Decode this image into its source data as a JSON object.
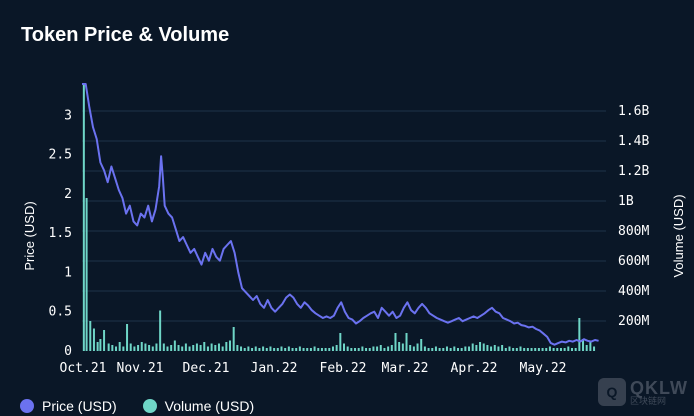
{
  "title": "Token Price & Volume",
  "legend": [
    {
      "label": "Price (USD)",
      "color": "#6b72f0"
    },
    {
      "label": "Volume (USD)",
      "color": "#6fd6c7"
    }
  ],
  "watermark": {
    "main": "QKLW",
    "sub": "区块链网"
  },
  "chart_data": {
    "type": "line",
    "title": "Token Price & Volume",
    "x_tick_labels": [
      "Oct.21",
      "Nov.21",
      "Dec.21",
      "Jan.22",
      "Feb.22",
      "Mar.22",
      "Apr.22",
      "May.22"
    ],
    "y_left": {
      "label": "Price (USD)",
      "range": [
        0,
        3.4
      ],
      "ticks": [
        0,
        0.5,
        1,
        1.5,
        2,
        2.5,
        3
      ],
      "tick_labels": [
        "0",
        "0.5",
        "1",
        "1.5",
        "2",
        "2.5",
        "3"
      ]
    },
    "y_right": {
      "label": "Volume (USD)",
      "range": [
        0,
        1.78
      ],
      "ticks": [
        0.2,
        0.4,
        0.6,
        0.8,
        1.0,
        1.2,
        1.4,
        1.6
      ],
      "tick_labels": [
        "200M",
        "400M",
        "600M",
        "800M",
        "1B",
        "1.2B",
        "1.4B",
        "1.6B"
      ]
    },
    "grid": true,
    "series": [
      {
        "name": "Price (USD)",
        "axis": "left",
        "color": "#6b72f0",
        "points": [
          [
            0.0,
            3.4
          ],
          [
            0.4,
            3.4
          ],
          [
            0.8,
            3.1
          ],
          [
            1.2,
            2.85
          ],
          [
            1.6,
            2.7
          ],
          [
            2.0,
            2.4
          ],
          [
            2.4,
            2.3
          ],
          [
            2.8,
            2.15
          ],
          [
            3.2,
            2.35
          ],
          [
            3.6,
            2.2
          ],
          [
            4.0,
            2.05
          ],
          [
            4.4,
            1.95
          ],
          [
            4.8,
            1.75
          ],
          [
            5.2,
            1.85
          ],
          [
            5.6,
            1.65
          ],
          [
            6.0,
            1.6
          ],
          [
            6.4,
            1.75
          ],
          [
            6.8,
            1.7
          ],
          [
            7.2,
            1.85
          ],
          [
            7.6,
            1.65
          ],
          [
            8.0,
            1.8
          ],
          [
            8.4,
            2.1
          ],
          [
            8.6,
            2.48
          ],
          [
            8.8,
            2.2
          ],
          [
            9.0,
            1.85
          ],
          [
            9.4,
            1.75
          ],
          [
            9.8,
            1.7
          ],
          [
            10.2,
            1.55
          ],
          [
            10.6,
            1.4
          ],
          [
            11.0,
            1.45
          ],
          [
            11.4,
            1.35
          ],
          [
            11.8,
            1.25
          ],
          [
            12.2,
            1.3
          ],
          [
            12.6,
            1.2
          ],
          [
            13.0,
            1.1
          ],
          [
            13.4,
            1.25
          ],
          [
            13.8,
            1.15
          ],
          [
            14.2,
            1.3
          ],
          [
            14.6,
            1.2
          ],
          [
            15.0,
            1.15
          ],
          [
            15.4,
            1.3
          ],
          [
            15.8,
            1.35
          ],
          [
            16.2,
            1.4
          ],
          [
            16.6,
            1.25
          ],
          [
            17.0,
            1.0
          ],
          [
            17.4,
            0.8
          ],
          [
            17.8,
            0.75
          ],
          [
            18.2,
            0.7
          ],
          [
            18.6,
            0.65
          ],
          [
            19.0,
            0.7
          ],
          [
            19.4,
            0.6
          ],
          [
            19.8,
            0.55
          ],
          [
            20.2,
            0.65
          ],
          [
            20.6,
            0.55
          ],
          [
            21.0,
            0.5
          ],
          [
            21.4,
            0.55
          ],
          [
            21.8,
            0.6
          ],
          [
            22.2,
            0.68
          ],
          [
            22.6,
            0.72
          ],
          [
            23.0,
            0.68
          ],
          [
            23.4,
            0.6
          ],
          [
            23.8,
            0.55
          ],
          [
            24.2,
            0.62
          ],
          [
            24.6,
            0.58
          ],
          [
            25.0,
            0.52
          ],
          [
            25.4,
            0.48
          ],
          [
            25.8,
            0.45
          ],
          [
            26.2,
            0.42
          ],
          [
            26.6,
            0.44
          ],
          [
            27.0,
            0.42
          ],
          [
            27.4,
            0.45
          ],
          [
            27.8,
            0.55
          ],
          [
            28.2,
            0.62
          ],
          [
            28.6,
            0.5
          ],
          [
            29.0,
            0.42
          ],
          [
            29.4,
            0.4
          ],
          [
            29.8,
            0.35
          ],
          [
            30.2,
            0.38
          ],
          [
            30.6,
            0.42
          ],
          [
            31.0,
            0.45
          ],
          [
            31.4,
            0.48
          ],
          [
            31.8,
            0.5
          ],
          [
            32.2,
            0.42
          ],
          [
            32.6,
            0.55
          ],
          [
            33.0,
            0.5
          ],
          [
            33.4,
            0.45
          ],
          [
            33.8,
            0.5
          ],
          [
            34.2,
            0.42
          ],
          [
            34.6,
            0.45
          ],
          [
            35.0,
            0.55
          ],
          [
            35.4,
            0.62
          ],
          [
            35.8,
            0.52
          ],
          [
            36.2,
            0.48
          ],
          [
            36.6,
            0.55
          ],
          [
            37.0,
            0.6
          ],
          [
            37.4,
            0.55
          ],
          [
            37.8,
            0.48
          ],
          [
            38.2,
            0.45
          ],
          [
            38.6,
            0.42
          ],
          [
            39.0,
            0.4
          ],
          [
            39.4,
            0.38
          ],
          [
            39.8,
            0.36
          ],
          [
            40.2,
            0.38
          ],
          [
            40.6,
            0.4
          ],
          [
            41.0,
            0.42
          ],
          [
            41.4,
            0.38
          ],
          [
            41.8,
            0.4
          ],
          [
            42.2,
            0.42
          ],
          [
            42.6,
            0.44
          ],
          [
            43.0,
            0.42
          ],
          [
            43.4,
            0.45
          ],
          [
            43.8,
            0.48
          ],
          [
            44.2,
            0.52
          ],
          [
            44.6,
            0.55
          ],
          [
            45.0,
            0.5
          ],
          [
            45.4,
            0.48
          ],
          [
            45.8,
            0.42
          ],
          [
            46.2,
            0.4
          ],
          [
            46.6,
            0.38
          ],
          [
            47.0,
            0.35
          ],
          [
            47.4,
            0.36
          ],
          [
            47.8,
            0.33
          ],
          [
            48.2,
            0.32
          ],
          [
            48.6,
            0.3
          ],
          [
            49.0,
            0.31
          ],
          [
            49.4,
            0.28
          ],
          [
            49.8,
            0.26
          ],
          [
            50.2,
            0.22
          ],
          [
            50.6,
            0.18
          ],
          [
            51.0,
            0.1
          ],
          [
            51.4,
            0.08
          ],
          [
            51.8,
            0.1
          ],
          [
            52.2,
            0.12
          ],
          [
            52.6,
            0.11
          ],
          [
            53.0,
            0.13
          ],
          [
            53.4,
            0.12
          ],
          [
            53.8,
            0.14
          ],
          [
            54.2,
            0.12
          ],
          [
            54.6,
            0.15
          ],
          [
            55.0,
            0.13
          ],
          [
            55.4,
            0.12
          ],
          [
            55.8,
            0.14
          ],
          [
            56.2,
            0.13
          ]
        ]
      },
      {
        "name": "Volume (USD)",
        "axis": "right",
        "color": "#6fd6c7",
        "bars": [
          [
            0.2,
            1.78
          ],
          [
            0.5,
            1.02
          ],
          [
            0.9,
            0.2
          ],
          [
            1.3,
            0.15
          ],
          [
            1.7,
            0.06
          ],
          [
            2.0,
            0.08
          ],
          [
            2.4,
            0.14
          ],
          [
            2.9,
            0.05
          ],
          [
            3.3,
            0.04
          ],
          [
            3.7,
            0.03
          ],
          [
            4.1,
            0.06
          ],
          [
            4.5,
            0.03
          ],
          [
            4.9,
            0.18
          ],
          [
            5.3,
            0.05
          ],
          [
            5.7,
            0.03
          ],
          [
            6.1,
            0.04
          ],
          [
            6.5,
            0.06
          ],
          [
            6.9,
            0.05
          ],
          [
            7.3,
            0.04
          ],
          [
            7.7,
            0.03
          ],
          [
            8.1,
            0.05
          ],
          [
            8.5,
            0.27
          ],
          [
            8.9,
            0.05
          ],
          [
            9.3,
            0.03
          ],
          [
            9.7,
            0.04
          ],
          [
            10.1,
            0.07
          ],
          [
            10.5,
            0.04
          ],
          [
            10.9,
            0.03
          ],
          [
            11.3,
            0.05
          ],
          [
            11.7,
            0.03
          ],
          [
            12.1,
            0.04
          ],
          [
            12.5,
            0.05
          ],
          [
            12.9,
            0.04
          ],
          [
            13.3,
            0.06
          ],
          [
            13.7,
            0.03
          ],
          [
            14.1,
            0.05
          ],
          [
            14.5,
            0.04
          ],
          [
            14.9,
            0.05
          ],
          [
            15.3,
            0.03
          ],
          [
            15.7,
            0.06
          ],
          [
            16.1,
            0.07
          ],
          [
            16.5,
            0.16
          ],
          [
            16.9,
            0.04
          ],
          [
            17.3,
            0.03
          ],
          [
            17.7,
            0.02
          ],
          [
            18.1,
            0.03
          ],
          [
            18.5,
            0.02
          ],
          [
            18.9,
            0.03
          ],
          [
            19.3,
            0.02
          ],
          [
            19.7,
            0.03
          ],
          [
            20.1,
            0.02
          ],
          [
            20.5,
            0.03
          ],
          [
            20.9,
            0.02
          ],
          [
            21.3,
            0.02
          ],
          [
            21.7,
            0.03
          ],
          [
            22.1,
            0.02
          ],
          [
            22.5,
            0.03
          ],
          [
            22.9,
            0.02
          ],
          [
            23.3,
            0.02
          ],
          [
            23.7,
            0.03
          ],
          [
            24.1,
            0.02
          ],
          [
            24.5,
            0.02
          ],
          [
            24.9,
            0.02
          ],
          [
            25.3,
            0.03
          ],
          [
            25.7,
            0.02
          ],
          [
            26.1,
            0.02
          ],
          [
            26.5,
            0.02
          ],
          [
            26.9,
            0.02
          ],
          [
            27.3,
            0.03
          ],
          [
            27.7,
            0.04
          ],
          [
            28.1,
            0.12
          ],
          [
            28.5,
            0.05
          ],
          [
            28.9,
            0.03
          ],
          [
            29.3,
            0.02
          ],
          [
            29.7,
            0.02
          ],
          [
            30.1,
            0.02
          ],
          [
            30.5,
            0.03
          ],
          [
            30.9,
            0.02
          ],
          [
            31.3,
            0.02
          ],
          [
            31.7,
            0.03
          ],
          [
            32.1,
            0.03
          ],
          [
            32.5,
            0.04
          ],
          [
            32.9,
            0.02
          ],
          [
            33.3,
            0.03
          ],
          [
            33.7,
            0.04
          ],
          [
            34.1,
            0.12
          ],
          [
            34.5,
            0.06
          ],
          [
            34.9,
            0.05
          ],
          [
            35.3,
            0.12
          ],
          [
            35.7,
            0.04
          ],
          [
            36.1,
            0.03
          ],
          [
            36.5,
            0.05
          ],
          [
            36.9,
            0.08
          ],
          [
            37.3,
            0.03
          ],
          [
            37.7,
            0.02
          ],
          [
            38.1,
            0.02
          ],
          [
            38.5,
            0.03
          ],
          [
            38.9,
            0.02
          ],
          [
            39.3,
            0.02
          ],
          [
            39.7,
            0.03
          ],
          [
            40.1,
            0.02
          ],
          [
            40.5,
            0.03
          ],
          [
            40.9,
            0.02
          ],
          [
            41.3,
            0.02
          ],
          [
            41.7,
            0.03
          ],
          [
            42.1,
            0.03
          ],
          [
            42.5,
            0.05
          ],
          [
            42.9,
            0.04
          ],
          [
            43.3,
            0.06
          ],
          [
            43.7,
            0.05
          ],
          [
            44.1,
            0.04
          ],
          [
            44.5,
            0.03
          ],
          [
            44.9,
            0.04
          ],
          [
            45.3,
            0.03
          ],
          [
            45.7,
            0.04
          ],
          [
            46.1,
            0.02
          ],
          [
            46.5,
            0.03
          ],
          [
            46.9,
            0.02
          ],
          [
            47.3,
            0.02
          ],
          [
            47.7,
            0.03
          ],
          [
            48.1,
            0.02
          ],
          [
            48.5,
            0.02
          ],
          [
            48.9,
            0.02
          ],
          [
            49.3,
            0.02
          ],
          [
            49.7,
            0.02
          ],
          [
            50.1,
            0.02
          ],
          [
            50.5,
            0.02
          ],
          [
            50.9,
            0.03
          ],
          [
            51.3,
            0.02
          ],
          [
            51.7,
            0.02
          ],
          [
            52.1,
            0.02
          ],
          [
            52.5,
            0.02
          ],
          [
            52.9,
            0.03
          ],
          [
            53.3,
            0.02
          ],
          [
            53.7,
            0.02
          ],
          [
            54.1,
            0.22
          ],
          [
            54.5,
            0.08
          ],
          [
            54.9,
            0.04
          ],
          [
            55.3,
            0.06
          ],
          [
            55.7,
            0.03
          ]
        ]
      }
    ]
  }
}
